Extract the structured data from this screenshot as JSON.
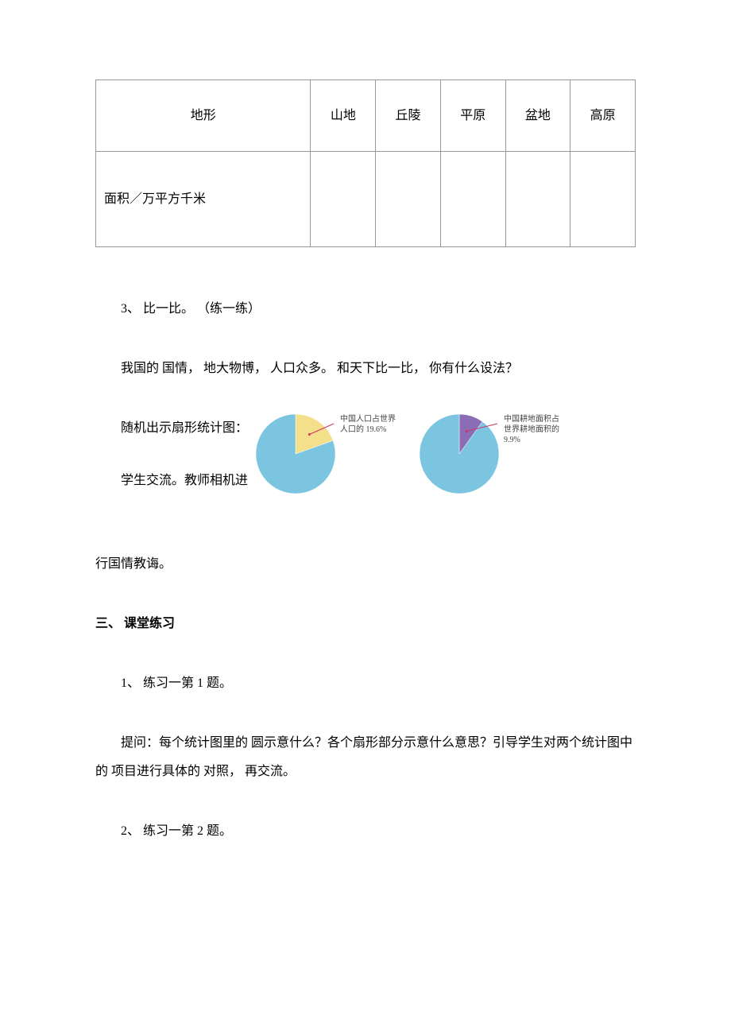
{
  "table": {
    "headers": [
      "地形",
      "山地",
      "丘陵",
      "平原",
      "盆地",
      "高原"
    ],
    "row_label": "面积／万平方千米",
    "border_color": "#999999",
    "header_row_height": 90,
    "data_row_height": 120
  },
  "text": {
    "p1": "3、 比一比。 （练一练）",
    "p2": "我国的 国情， 地大物博， 人口众多。 和天下比一比， 你有什么设法？",
    "chart_line1": "随机出示扇形统计图：",
    "chart_line2": "学生交流。教师相机进",
    "chart_continuation": "行国情教诲。",
    "section_title": "三、 课堂练习",
    "p3": "1、 练习一第 1 题。",
    "p4": "提问：每个统计图里的 圆示意什么？各个扇形部分示意什么意思？引导学生对两个统计图中的 项目进行具体的 对照， 再交流。",
    "p5": "2、 练习一第 2 题。"
  },
  "pie1": {
    "type": "pie",
    "label_line1": "中国人口占世界",
    "label_line2": "人口的 19.6%",
    "slices": [
      {
        "value": 19.6,
        "color": "#f4e08a"
      },
      {
        "value": 80.4,
        "color": "#7bc5e0"
      }
    ],
    "radius": 50,
    "pointer_color": "#cc3366",
    "background_color": "#ffffff",
    "label_fontsize": 10,
    "label_color": "#444444"
  },
  "pie2": {
    "type": "pie",
    "label_line1": "中国耕地面积占",
    "label_line2": "世界耕地面积的",
    "label_line3": "9.9%",
    "slices": [
      {
        "value": 9.9,
        "color": "#8a6db5"
      },
      {
        "value": 90.1,
        "color": "#7bc5e0"
      }
    ],
    "radius": 50,
    "pointer_color": "#cc3366",
    "background_color": "#ffffff",
    "label_fontsize": 10,
    "label_color": "#444444"
  }
}
